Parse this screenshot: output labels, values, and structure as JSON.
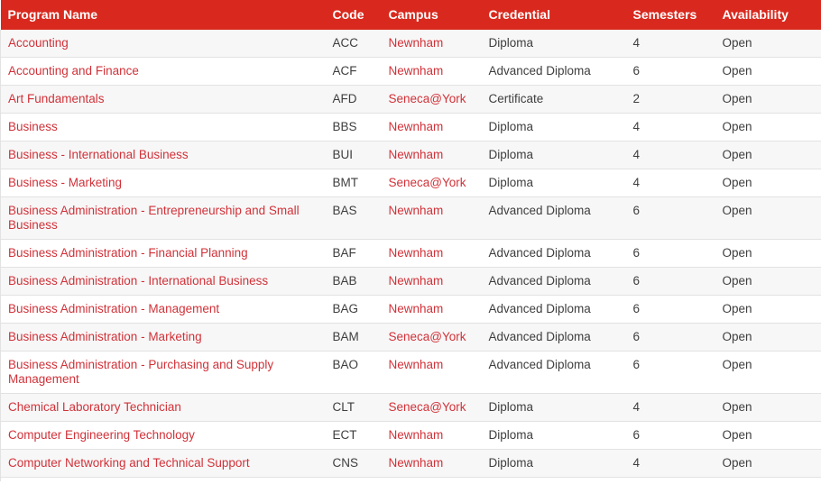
{
  "colors": {
    "header_bg": "#d9291e",
    "header_text": "#ffffff",
    "link": "#d13239",
    "text": "#3e3e3e",
    "stripe": "#f7f7f7",
    "border": "#e2e2e2"
  },
  "table": {
    "columns": [
      {
        "key": "name",
        "label": "Program Name"
      },
      {
        "key": "code",
        "label": "Code"
      },
      {
        "key": "campus",
        "label": "Campus"
      },
      {
        "key": "credential",
        "label": "Credential"
      },
      {
        "key": "semesters",
        "label": "Semesters"
      },
      {
        "key": "availability",
        "label": "Availability"
      }
    ],
    "rows": [
      {
        "name": "Accounting",
        "code": "ACC",
        "campus": "Newnham",
        "credential": "Diploma",
        "semesters": "4",
        "availability": "Open"
      },
      {
        "name": "Accounting and Finance",
        "code": "ACF",
        "campus": "Newnham",
        "credential": "Advanced Diploma",
        "semesters": "6",
        "availability": "Open"
      },
      {
        "name": "Art Fundamentals",
        "code": "AFD",
        "campus": "Seneca@York",
        "credential": "Certificate",
        "semesters": "2",
        "availability": "Open"
      },
      {
        "name": "Business",
        "code": "BBS",
        "campus": "Newnham",
        "credential": "Diploma",
        "semesters": "4",
        "availability": "Open"
      },
      {
        "name": "Business - International Business",
        "code": "BUI",
        "campus": "Newnham",
        "credential": "Diploma",
        "semesters": "4",
        "availability": "Open"
      },
      {
        "name": "Business - Marketing",
        "code": "BMT",
        "campus": "Seneca@York",
        "credential": "Diploma",
        "semesters": "4",
        "availability": "Open"
      },
      {
        "name": "Business Administration - Entrepreneurship and Small Business",
        "code": "BAS",
        "campus": "Newnham",
        "credential": "Advanced Diploma",
        "semesters": "6",
        "availability": "Open"
      },
      {
        "name": "Business Administration - Financial Planning",
        "code": "BAF",
        "campus": "Newnham",
        "credential": "Advanced Diploma",
        "semesters": "6",
        "availability": "Open"
      },
      {
        "name": "Business Administration - International Business",
        "code": "BAB",
        "campus": "Newnham",
        "credential": "Advanced Diploma",
        "semesters": "6",
        "availability": "Open"
      },
      {
        "name": "Business Administration - Management",
        "code": "BAG",
        "campus": "Newnham",
        "credential": "Advanced Diploma",
        "semesters": "6",
        "availability": "Open"
      },
      {
        "name": "Business Administration - Marketing",
        "code": "BAM",
        "campus": "Seneca@York",
        "credential": "Advanced Diploma",
        "semesters": "6",
        "availability": "Open"
      },
      {
        "name": "Business Administration - Purchasing and Supply Management",
        "code": "BAO",
        "campus": "Newnham",
        "credential": "Advanced Diploma",
        "semesters": "6",
        "availability": "Open"
      },
      {
        "name": "Chemical Laboratory Technician",
        "code": "CLT",
        "campus": "Seneca@York",
        "credential": "Diploma",
        "semesters": "4",
        "availability": "Open"
      },
      {
        "name": "Computer Engineering Technology",
        "code": "ECT",
        "campus": "Newnham",
        "credential": "Diploma",
        "semesters": "6",
        "availability": "Open"
      },
      {
        "name": "Computer Networking and Technical Support",
        "code": "CNS",
        "campus": "Newnham",
        "credential": "Diploma",
        "semesters": "4",
        "availability": "Open"
      }
    ]
  }
}
